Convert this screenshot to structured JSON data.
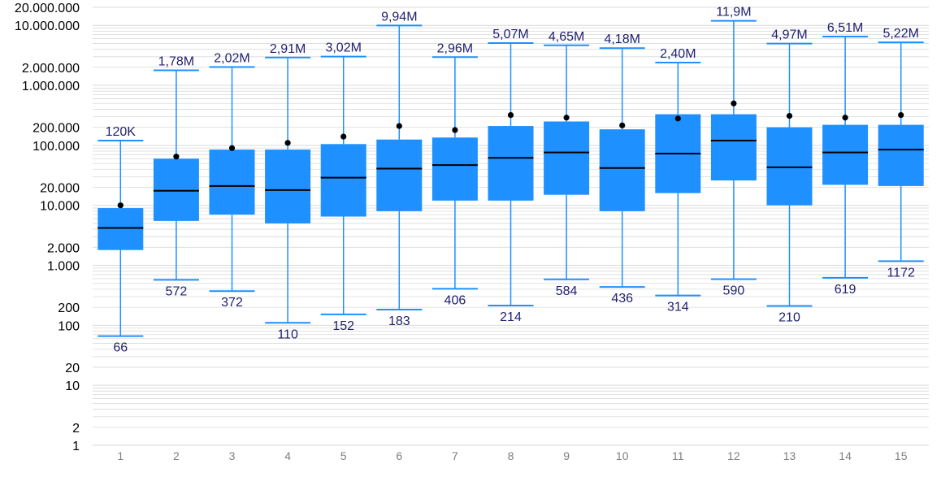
{
  "chart_data": {
    "type": "box",
    "y_scale": "log",
    "ylim": [
      1,
      20000000
    ],
    "y_tick_labels": [
      {
        "value": 20000000,
        "label": "20.000.000"
      },
      {
        "value": 10000000,
        "label": "10.000.000"
      },
      {
        "value": 2000000,
        "label": "2.000.000"
      },
      {
        "value": 1000000,
        "label": "1.000.000"
      },
      {
        "value": 200000,
        "label": "200.000"
      },
      {
        "value": 100000,
        "label": "100.000"
      },
      {
        "value": 20000,
        "label": "20.000"
      },
      {
        "value": 10000,
        "label": "10.000"
      },
      {
        "value": 2000,
        "label": "2.000"
      },
      {
        "value": 1000,
        "label": "1.000"
      },
      {
        "value": 200,
        "label": "200"
      },
      {
        "value": 100,
        "label": "100"
      },
      {
        "value": 20,
        "label": "20"
      },
      {
        "value": 10,
        "label": "10"
      },
      {
        "value": 2,
        "label": "2"
      },
      {
        "value": 1,
        "label": "1"
      }
    ],
    "grid": true,
    "colors": {
      "box": "#1e90ff",
      "whisker": "#1e90ff",
      "median": "#000000",
      "mean": "#000000",
      "label": "#1f1f6e",
      "grid": "#d9d9d9"
    },
    "boxes": [
      {
        "category": "1",
        "min": 66,
        "q1": 1800,
        "median": 4200,
        "q3": 9000,
        "max": 120000,
        "mean": 10000,
        "max_label": "120K",
        "min_label": "66"
      },
      {
        "category": "2",
        "min": 572,
        "q1": 5500,
        "median": 17500,
        "q3": 60000,
        "max": 1780000,
        "mean": 65000,
        "max_label": "1,78M",
        "min_label": "572"
      },
      {
        "category": "3",
        "min": 372,
        "q1": 7000,
        "median": 21000,
        "q3": 85000,
        "max": 2020000,
        "mean": 90000,
        "max_label": "2,02M",
        "min_label": "372"
      },
      {
        "category": "4",
        "min": 110,
        "q1": 5000,
        "median": 18000,
        "q3": 85000,
        "max": 2910000,
        "mean": 110000,
        "max_label": "2,91M",
        "min_label": "110"
      },
      {
        "category": "5",
        "min": 152,
        "q1": 6500,
        "median": 29000,
        "q3": 105000,
        "max": 3020000,
        "mean": 140000,
        "max_label": "3,02M",
        "min_label": "152"
      },
      {
        "category": "6",
        "min": 183,
        "q1": 8000,
        "median": 41000,
        "q3": 125000,
        "max": 9940000,
        "mean": 210000,
        "max_label": "9,94M",
        "min_label": "183"
      },
      {
        "category": "7",
        "min": 406,
        "q1": 12000,
        "median": 47000,
        "q3": 135000,
        "max": 2960000,
        "mean": 180000,
        "max_label": "2,96M",
        "min_label": "406"
      },
      {
        "category": "8",
        "min": 214,
        "q1": 12000,
        "median": 62000,
        "q3": 210000,
        "max": 5070000,
        "mean": 320000,
        "max_label": "5,07M",
        "min_label": "214"
      },
      {
        "category": "9",
        "min": 584,
        "q1": 15000,
        "median": 76000,
        "q3": 250000,
        "max": 4650000,
        "mean": 290000,
        "max_label": "4,65M",
        "min_label": "584"
      },
      {
        "category": "10",
        "min": 436,
        "q1": 8000,
        "median": 42000,
        "q3": 185000,
        "max": 4180000,
        "mean": 215000,
        "max_label": "4,18M",
        "min_label": "436"
      },
      {
        "category": "11",
        "min": 314,
        "q1": 16000,
        "median": 73000,
        "q3": 330000,
        "max": 2400000,
        "mean": 280000,
        "max_label": "2,40M",
        "min_label": "314"
      },
      {
        "category": "12",
        "min": 590,
        "q1": 26000,
        "median": 120000,
        "q3": 330000,
        "max": 11900000,
        "mean": 500000,
        "max_label": "11,9M",
        "min_label": "590"
      },
      {
        "category": "13",
        "min": 210,
        "q1": 10000,
        "median": 43000,
        "q3": 200000,
        "max": 4970000,
        "mean": 310000,
        "max_label": "4,97M",
        "min_label": "210"
      },
      {
        "category": "14",
        "min": 619,
        "q1": 22000,
        "median": 76000,
        "q3": 220000,
        "max": 6510000,
        "mean": 290000,
        "max_label": "6,51M",
        "min_label": "619"
      },
      {
        "category": "15",
        "min": 1172,
        "q1": 21000,
        "median": 85000,
        "q3": 220000,
        "max": 5220000,
        "mean": 320000,
        "max_label": "5,22M",
        "min_label": "1172"
      }
    ]
  }
}
